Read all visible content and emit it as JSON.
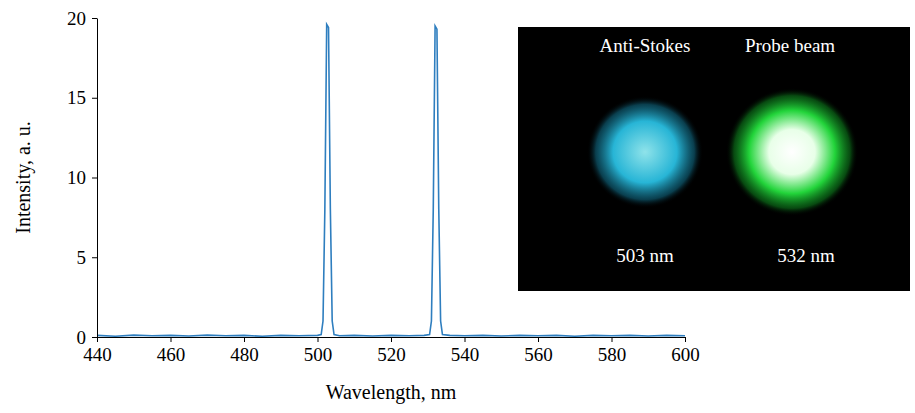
{
  "chart_data": {
    "type": "line",
    "x_label": "Wavelength, nm",
    "y_label": "Intensity, a. u.",
    "x": [
      440,
      445,
      450,
      455,
      460,
      465,
      470,
      475,
      480,
      485,
      490,
      495,
      500,
      501,
      501.5,
      502,
      502.5,
      503,
      503.5,
      504,
      504.5,
      506,
      510,
      515,
      520,
      525,
      529,
      530.5,
      531,
      531.5,
      532,
      532.5,
      533,
      533.5,
      534,
      536,
      540,
      545,
      550,
      555,
      560,
      565,
      570,
      575,
      580,
      585,
      590,
      595,
      600
    ],
    "values": [
      0.1,
      0.05,
      0.12,
      0.08,
      0.1,
      0.06,
      0.12,
      0.08,
      0.1,
      0.05,
      0.1,
      0.08,
      0.1,
      0.15,
      1,
      8,
      19.6,
      19.4,
      8,
      1,
      0.15,
      0.08,
      0.1,
      0.06,
      0.1,
      0.08,
      0.1,
      0.15,
      1,
      8,
      19.5,
      19.3,
      8,
      1,
      0.15,
      0.1,
      0.08,
      0.1,
      0.06,
      0.1,
      0.08,
      0.1,
      0.05,
      0.1,
      0.08,
      0.1,
      0.06,
      0.1,
      0.08
    ],
    "color": "#2e7ebf",
    "xlim": [
      440,
      600
    ],
    "xticks": [
      440,
      460,
      480,
      500,
      520,
      540,
      560,
      580,
      600
    ],
    "ylim": [
      0,
      20
    ],
    "yticks": [
      0,
      5,
      10,
      15,
      20
    ],
    "grid": false,
    "annotations": [
      "Anti-Stokes",
      "Probe beam",
      "503 nm",
      "532 nm"
    ]
  }
}
